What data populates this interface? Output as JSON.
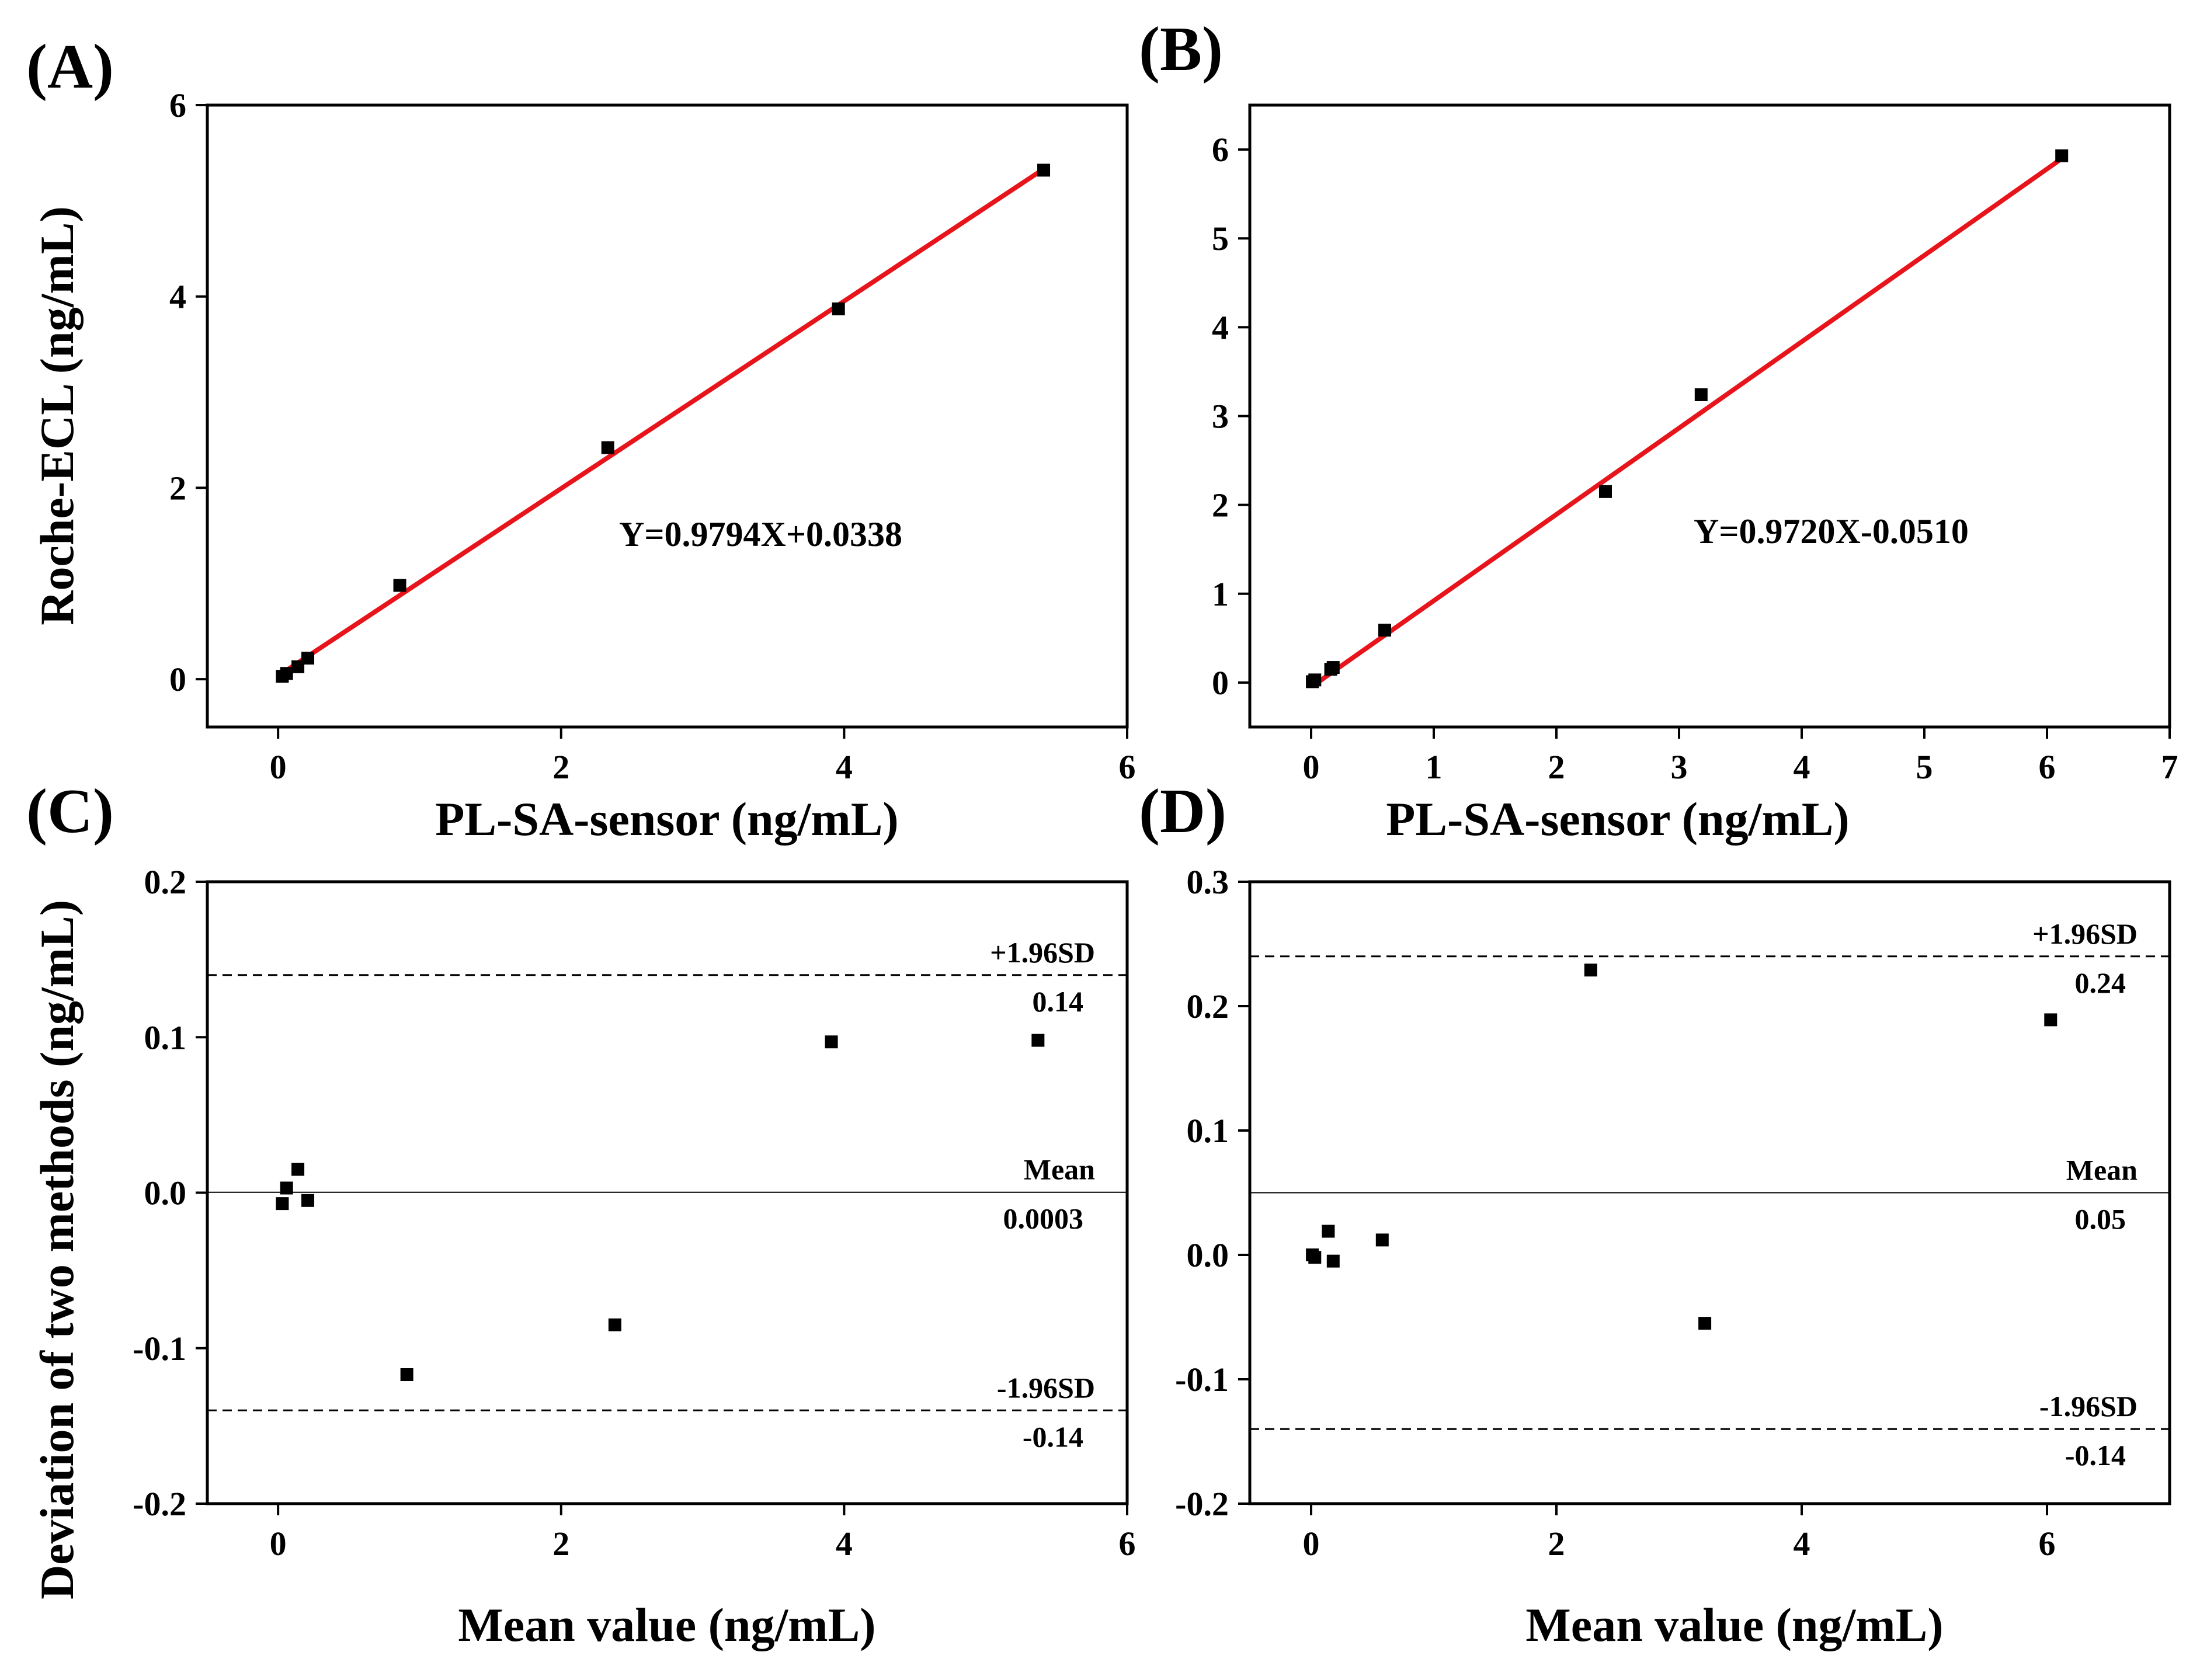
{
  "chart_data": [
    {
      "id": "A",
      "type": "scatter",
      "panel_label": "(A)",
      "xlabel": "PL-SA-sensor (ng/mL)",
      "ylabel": "Roche-ECL (ng/mL)",
      "xlim": [
        -0.5,
        6
      ],
      "ylim": [
        -0.5,
        6
      ],
      "xticks": [
        0,
        2,
        4,
        6
      ],
      "yticks": [
        0,
        2,
        4,
        6
      ],
      "points": [
        [
          0.03,
          0.03
        ],
        [
          0.06,
          0.06
        ],
        [
          0.14,
          0.13
        ],
        [
          0.21,
          0.22
        ],
        [
          0.86,
          0.98
        ],
        [
          2.33,
          2.42
        ],
        [
          3.96,
          3.87
        ],
        [
          5.41,
          5.32
        ]
      ],
      "fit": {
        "slope": 0.9794,
        "intercept": 0.0338,
        "x_range": [
          0.03,
          5.41
        ],
        "color": "#e8141b"
      },
      "equation": "Y=0.9794X+0.0338",
      "ref_lines": []
    },
    {
      "id": "B",
      "type": "scatter",
      "panel_label": "(B)",
      "xlabel": "PL-SA-sensor (ng/mL)",
      "ylabel": "",
      "xlim": [
        -0.5,
        7
      ],
      "ylim": [
        -0.5,
        6.5
      ],
      "xticks": [
        0,
        1,
        2,
        3,
        4,
        5,
        6,
        7
      ],
      "yticks": [
        0,
        1,
        2,
        3,
        4,
        5,
        6
      ],
      "points": [
        [
          0.01,
          0.01
        ],
        [
          0.03,
          0.03
        ],
        [
          0.16,
          0.15
        ],
        [
          0.18,
          0.17
        ],
        [
          0.6,
          0.59
        ],
        [
          2.4,
          2.15
        ],
        [
          3.18,
          3.24
        ],
        [
          6.12,
          5.93
        ]
      ],
      "fit": {
        "slope": 0.972,
        "intercept": -0.051,
        "x_range": [
          0.01,
          6.12
        ],
        "color": "#e8141b"
      },
      "equation": "Y=0.9720X-0.0510",
      "ref_lines": []
    },
    {
      "id": "C",
      "type": "scatter",
      "panel_label": "(C)",
      "xlabel": "Mean value (ng/mL)",
      "ylabel": "Deviation of two methods (ng/mL)",
      "xlim": [
        -0.5,
        6
      ],
      "ylim": [
        -0.2,
        0.2
      ],
      "xticks": [
        0,
        2,
        4,
        6
      ],
      "yticks": [
        -0.2,
        -0.1,
        0.0,
        0.1,
        0.2
      ],
      "ytick_labels": [
        "-0.2",
        "-0.1",
        "0.0",
        "0.1",
        "0.2"
      ],
      "points": [
        [
          0.03,
          -0.007
        ],
        [
          0.06,
          0.003
        ],
        [
          0.14,
          0.015
        ],
        [
          0.21,
          -0.005
        ],
        [
          0.91,
          -0.117
        ],
        [
          2.38,
          -0.085
        ],
        [
          3.91,
          0.097
        ],
        [
          5.37,
          0.098
        ]
      ],
      "ref_lines": [
        {
          "value": 0.14,
          "style": "dashed",
          "label": "+1.96SD",
          "value_label": "0.14"
        },
        {
          "value": 0.0003,
          "style": "solid",
          "label": "Mean",
          "value_label": "0.0003"
        },
        {
          "value": -0.14,
          "style": "dashed",
          "label": "-1.96SD",
          "value_label": "-0.14"
        }
      ],
      "equation": ""
    },
    {
      "id": "D",
      "type": "scatter",
      "panel_label": "(D)",
      "xlabel": "Mean value (ng/mL)",
      "ylabel": "",
      "xlim": [
        -0.5,
        7
      ],
      "ylim": [
        -0.2,
        0.3
      ],
      "xticks": [
        0,
        2,
        4,
        6
      ],
      "yticks": [
        -0.2,
        -0.1,
        0.0,
        0.1,
        0.2,
        0.3
      ],
      "ytick_labels": [
        "-0.2",
        "-0.1",
        "0.0",
        "0.1",
        "0.2",
        "0.3"
      ],
      "points": [
        [
          0.01,
          0.0
        ],
        [
          0.03,
          -0.002
        ],
        [
          0.14,
          0.019
        ],
        [
          0.18,
          -0.005
        ],
        [
          0.58,
          0.012
        ],
        [
          2.28,
          0.229
        ],
        [
          3.21,
          -0.055
        ],
        [
          6.03,
          0.189
        ]
      ],
      "ref_lines": [
        {
          "value": 0.24,
          "style": "dashed",
          "label": "+1.96SD",
          "value_label": "0.24"
        },
        {
          "value": 0.05,
          "style": "solid",
          "label": "Mean",
          "value_label": "0.05"
        },
        {
          "value": -0.14,
          "style": "dashed",
          "label": "-1.96SD",
          "value_label": "-0.14"
        }
      ],
      "equation": ""
    }
  ]
}
